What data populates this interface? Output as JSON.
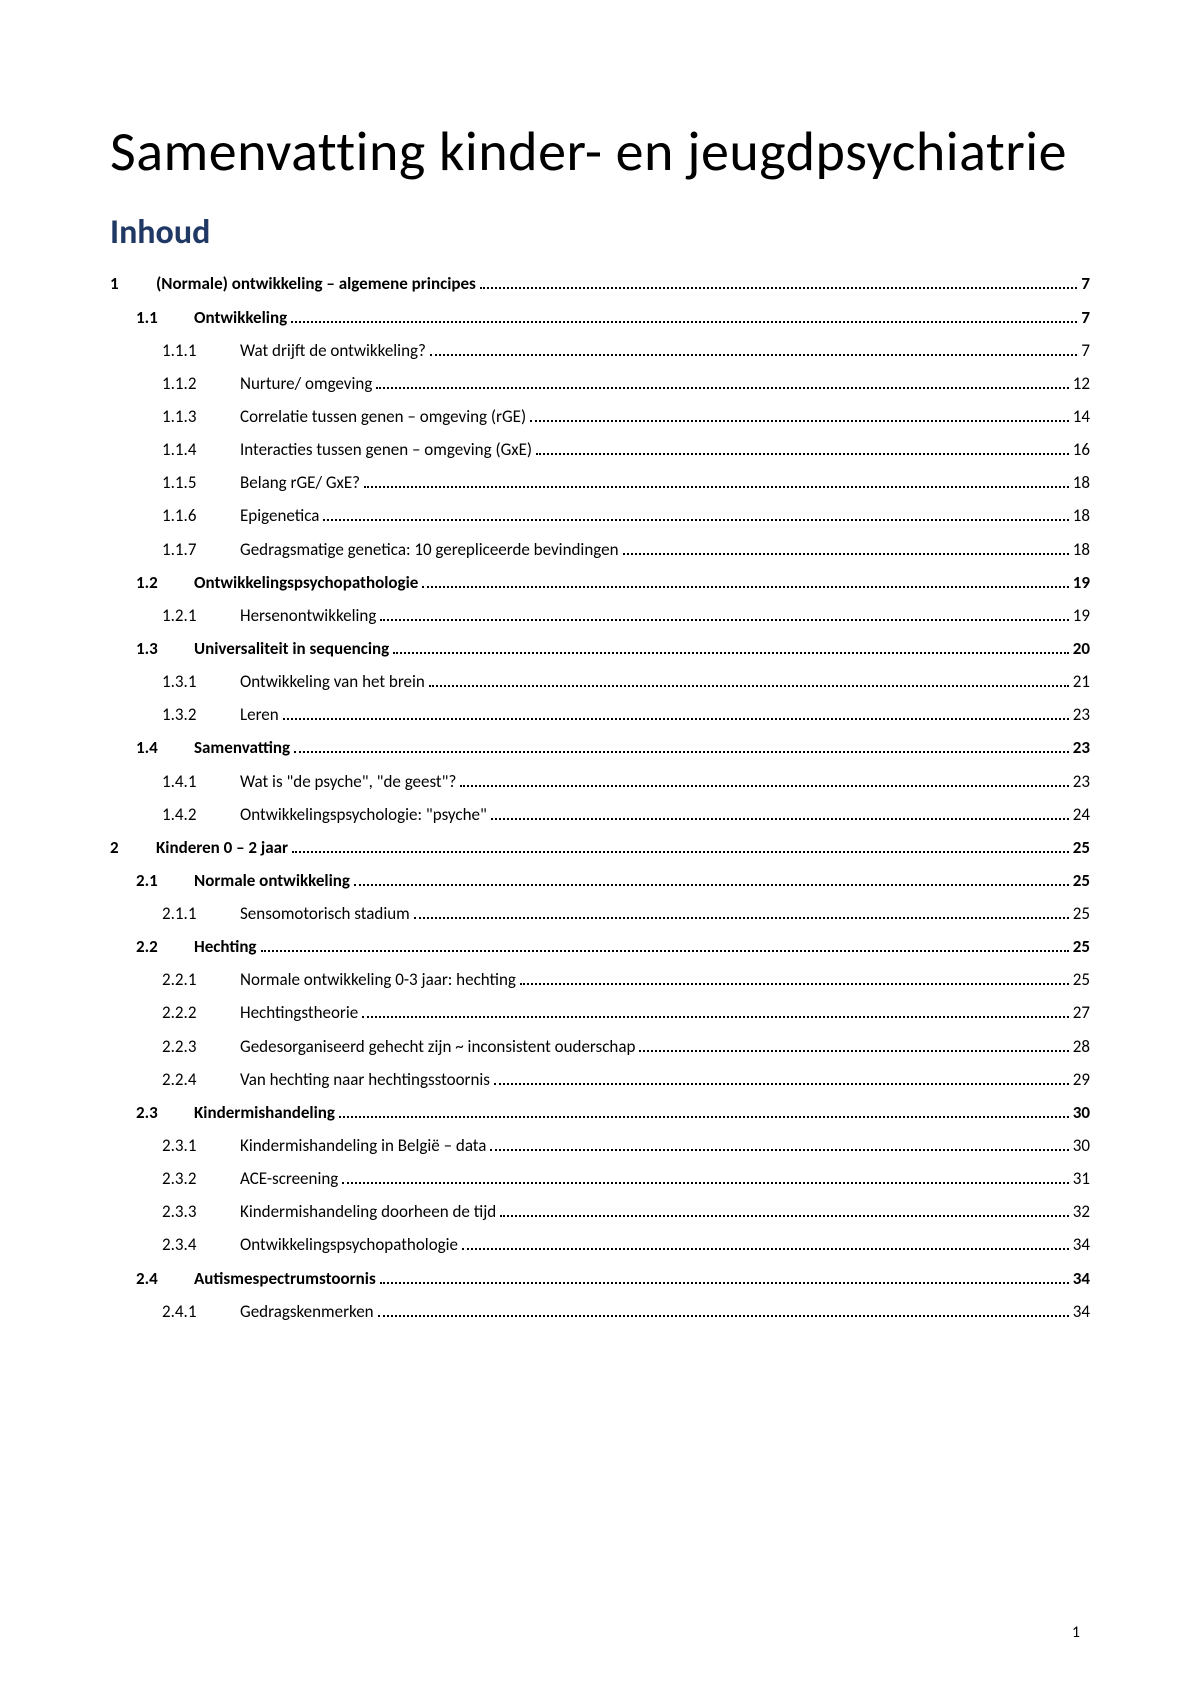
{
  "title": "Samenvatting kinder- en jeugdpsychiatrie",
  "toc_heading": "Inhoud",
  "page_number": "1",
  "colors": {
    "heading": "#1f3864",
    "text": "#000000",
    "background": "#ffffff"
  },
  "typography": {
    "title_fontsize": 56,
    "heading_fontsize": 34,
    "entry_fontsize": 17,
    "font_family": "Calibri"
  },
  "toc": [
    {
      "level": 1,
      "num": "1",
      "label": "(Normale) ontwikkeling – algemene principes",
      "page": "7"
    },
    {
      "level": 2,
      "num": "1.1",
      "label": "Ontwikkeling",
      "page": "7"
    },
    {
      "level": 3,
      "num": "1.1.1",
      "label": "Wat drijft de ontwikkeling?",
      "page": "7"
    },
    {
      "level": 3,
      "num": "1.1.2",
      "label": "Nurture/ omgeving",
      "page": "12"
    },
    {
      "level": 3,
      "num": "1.1.3",
      "label": "Correlatie tussen genen – omgeving (rGE)",
      "page": "14"
    },
    {
      "level": 3,
      "num": "1.1.4",
      "label": "Interacties tussen genen – omgeving (GxE)",
      "page": "16"
    },
    {
      "level": 3,
      "num": "1.1.5",
      "label": "Belang rGE/ GxE?",
      "page": "18"
    },
    {
      "level": 3,
      "num": "1.1.6",
      "label": "Epigenetica",
      "page": "18"
    },
    {
      "level": 3,
      "num": "1.1.7",
      "label": "Gedragsmatige genetica: 10 gerepliceerde bevindingen",
      "page": "18"
    },
    {
      "level": 2,
      "num": "1.2",
      "label": "Ontwikkelingspsychopathologie",
      "page": "19"
    },
    {
      "level": 3,
      "num": "1.2.1",
      "label": "Hersenontwikkeling",
      "page": "19"
    },
    {
      "level": 2,
      "num": "1.3",
      "label": "Universaliteit in sequencing",
      "page": "20"
    },
    {
      "level": 3,
      "num": "1.3.1",
      "label": "Ontwikkeling van het brein",
      "page": "21"
    },
    {
      "level": 3,
      "num": "1.3.2",
      "label": "Leren",
      "page": "23"
    },
    {
      "level": 2,
      "num": "1.4",
      "label": "Samenvatting",
      "page": "23"
    },
    {
      "level": 3,
      "num": "1.4.1",
      "label": "Wat is \"de psyche\", \"de geest\"?",
      "page": "23"
    },
    {
      "level": 3,
      "num": "1.4.2",
      "label": "Ontwikkelingspsychologie: \"psyche\"",
      "page": "24"
    },
    {
      "level": 1,
      "num": "2",
      "label": "Kinderen 0 – 2 jaar",
      "page": "25"
    },
    {
      "level": 2,
      "num": "2.1",
      "label": "Normale ontwikkeling",
      "page": "25"
    },
    {
      "level": 3,
      "num": "2.1.1",
      "label": "Sensomotorisch stadium",
      "page": "25"
    },
    {
      "level": 2,
      "num": "2.2",
      "label": "Hechting",
      "page": "25"
    },
    {
      "level": 3,
      "num": "2.2.1",
      "label": "Normale ontwikkeling 0-3 jaar: hechting",
      "page": "25"
    },
    {
      "level": 3,
      "num": "2.2.2",
      "label": "Hechtingstheorie",
      "page": "27"
    },
    {
      "level": 3,
      "num": "2.2.3",
      "label": "Gedesorganiseerd gehecht zijn ~ inconsistent ouderschap",
      "page": "28"
    },
    {
      "level": 3,
      "num": "2.2.4",
      "label": "Van hechting naar hechtingsstoornis",
      "page": "29"
    },
    {
      "level": 2,
      "num": "2.3",
      "label": "Kindermishandeling",
      "page": "30"
    },
    {
      "level": 3,
      "num": "2.3.1",
      "label": "Kindermishandeling in België – data",
      "page": "30"
    },
    {
      "level": 3,
      "num": "2.3.2",
      "label": "ACE-screening",
      "page": "31"
    },
    {
      "level": 3,
      "num": "2.3.3",
      "label": "Kindermishandeling doorheen de tijd",
      "page": "32"
    },
    {
      "level": 3,
      "num": "2.3.4",
      "label": "Ontwikkelingspsychopathologie",
      "page": "34"
    },
    {
      "level": 2,
      "num": "2.4",
      "label": "Autismespectrumstoornis",
      "page": "34"
    },
    {
      "level": 3,
      "num": "2.4.1",
      "label": "Gedragskenmerken",
      "page": "34"
    }
  ]
}
